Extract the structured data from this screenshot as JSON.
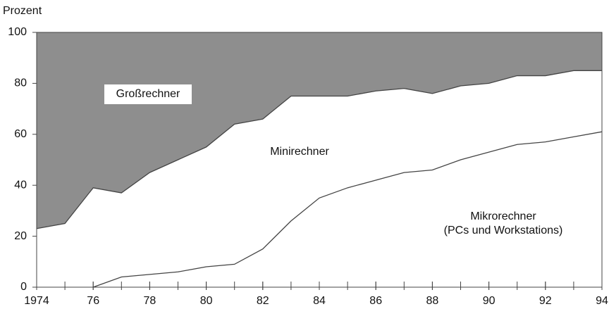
{
  "chart_data": {
    "type": "stacked_area",
    "ylabel": "Prozent",
    "x": [
      1974,
      1975,
      1976,
      1977,
      1978,
      1979,
      1980,
      1981,
      1982,
      1983,
      1984,
      1985,
      1986,
      1987,
      1988,
      1989,
      1990,
      1991,
      1992,
      1993,
      1994
    ],
    "xlim": [
      1974,
      1994
    ],
    "xticks": [
      {
        "value": 1974,
        "label": "1974"
      },
      {
        "value": 1976,
        "label": "76"
      },
      {
        "value": 1978,
        "label": "78"
      },
      {
        "value": 1980,
        "label": "80"
      },
      {
        "value": 1982,
        "label": "82"
      },
      {
        "value": 1984,
        "label": "84"
      },
      {
        "value": 1986,
        "label": "86"
      },
      {
        "value": 1988,
        "label": "88"
      },
      {
        "value": 1990,
        "label": "90"
      },
      {
        "value": 1992,
        "label": "92"
      },
      {
        "value": 1994,
        "label": "94"
      }
    ],
    "ylim": [
      0,
      100
    ],
    "yticks": [
      0,
      20,
      40,
      60,
      80,
      100
    ],
    "series": [
      {
        "name": "Mikrorechner\n(PCs und Workstations)",
        "color": "#ffffff",
        "values": [
          null,
          null,
          0,
          4,
          5,
          6,
          8,
          9,
          15,
          26,
          35,
          39,
          42,
          45,
          46,
          50,
          53,
          56,
          57,
          59,
          61
        ]
      },
      {
        "name": "Minirechner",
        "color": "#ffffff",
        "values": [
          23,
          25,
          39,
          33,
          40,
          44,
          47,
          55,
          51,
          49,
          40,
          36,
          35,
          33,
          30,
          29,
          27,
          27,
          26,
          26,
          24
        ]
      },
      {
        "name": "Großrechner",
        "color": "#8e8e8e",
        "values": [
          77,
          75,
          61,
          63,
          55,
          50,
          45,
          36,
          34,
          25,
          25,
          25,
          23,
          22,
          24,
          21,
          20,
          17,
          17,
          15,
          15
        ]
      }
    ]
  }
}
